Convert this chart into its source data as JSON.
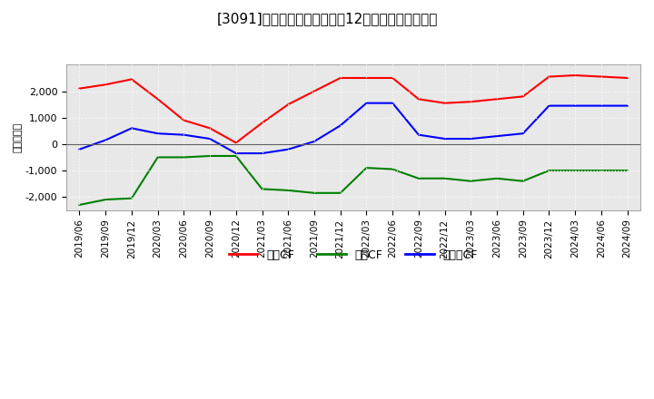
{
  "title": "[3091]　キャッシュフローの12か月移動合計の推移",
  "ylabel": "（百万円）",
  "ylim": [
    -2500,
    3000
  ],
  "yticks": [
    -2000,
    -1000,
    0,
    1000,
    2000
  ],
  "dates": [
    "2019/06",
    "2019/09",
    "2019/12",
    "2020/03",
    "2020/06",
    "2020/09",
    "2020/12",
    "2021/03",
    "2021/06",
    "2021/09",
    "2021/12",
    "2022/03",
    "2022/06",
    "2022/09",
    "2022/12",
    "2023/03",
    "2023/06",
    "2023/09",
    "2023/12",
    "2024/03",
    "2024/06",
    "2024/09"
  ],
  "eigyo_cf": [
    2100,
    2250,
    2450,
    1700,
    900,
    600,
    50,
    800,
    1500,
    2000,
    2500,
    2500,
    2500,
    1700,
    1550,
    1600,
    1700,
    1800,
    2550,
    2600,
    2550,
    2500
  ],
  "toshi_cf": [
    -2300,
    -2100,
    -2050,
    -500,
    -500,
    -450,
    -450,
    -1700,
    -1750,
    -1850,
    -1850,
    -900,
    -950,
    -1300,
    -1300,
    -1400,
    -1300,
    -1400,
    -1000,
    -1000,
    -1000,
    -1000
  ],
  "free_cf": [
    -200,
    150,
    600,
    400,
    350,
    200,
    -350,
    -350,
    -200,
    100,
    700,
    1550,
    1550,
    350,
    200,
    200,
    300,
    400,
    1450,
    1450,
    1450,
    1450
  ],
  "eigyo_color": "#ff0000",
  "toshi_color": "#008000",
  "free_color": "#0000ff",
  "bg_color": "#ffffff",
  "plot_bg_color": "#e8e8e8",
  "legend_eigyo": "営業CF",
  "legend_toshi": "投資CF",
  "legend_free": "フリーCF",
  "grid_color": "#ffffff",
  "zero_line_color": "#606060"
}
